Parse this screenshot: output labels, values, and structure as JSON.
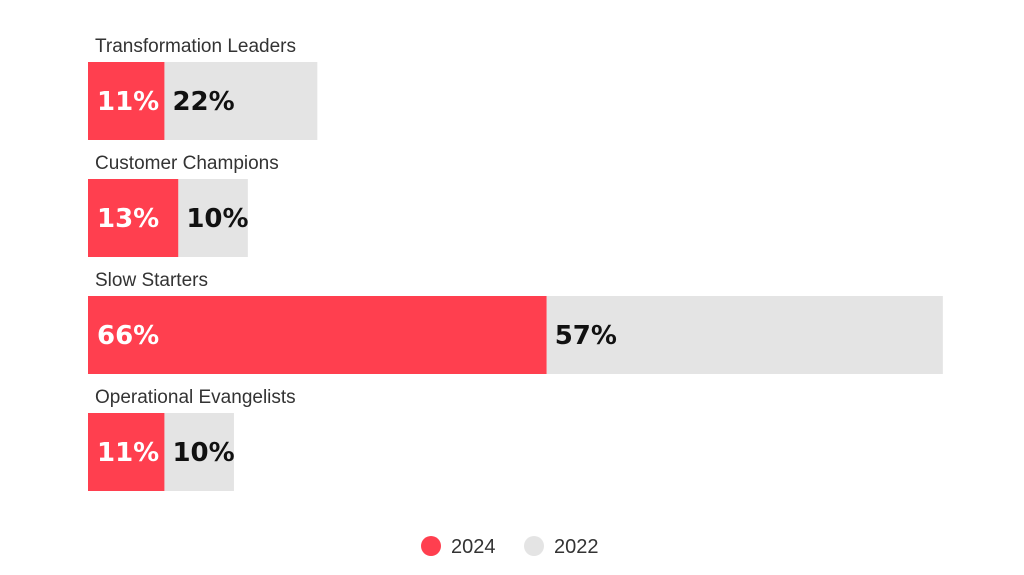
{
  "chart_data": {
    "type": "bar",
    "orientation": "horizontal",
    "stacked": true,
    "title": "",
    "xlabel": "",
    "ylabel": "",
    "categories": [
      "Transformation Leaders",
      "Customer Champions",
      "Slow Starters",
      "Operational Evangelists"
    ],
    "series": [
      {
        "name": "2024",
        "color": "#ff3f4f",
        "values": [
          11,
          13,
          66,
          11
        ],
        "labels": [
          "11%",
          "13%",
          "66%",
          "11%"
        ]
      },
      {
        "name": "2022",
        "color": "#e4e4e4",
        "values": [
          22,
          10,
          57,
          10
        ],
        "labels": [
          "22%",
          "10%",
          "57%",
          "10%"
        ]
      }
    ],
    "legend": {
      "position": "bottom-center",
      "items": [
        {
          "label": "2024",
          "color": "#ff3f4f"
        },
        {
          "label": "2022",
          "color": "#e4e4e4"
        }
      ]
    },
    "grid": false
  }
}
